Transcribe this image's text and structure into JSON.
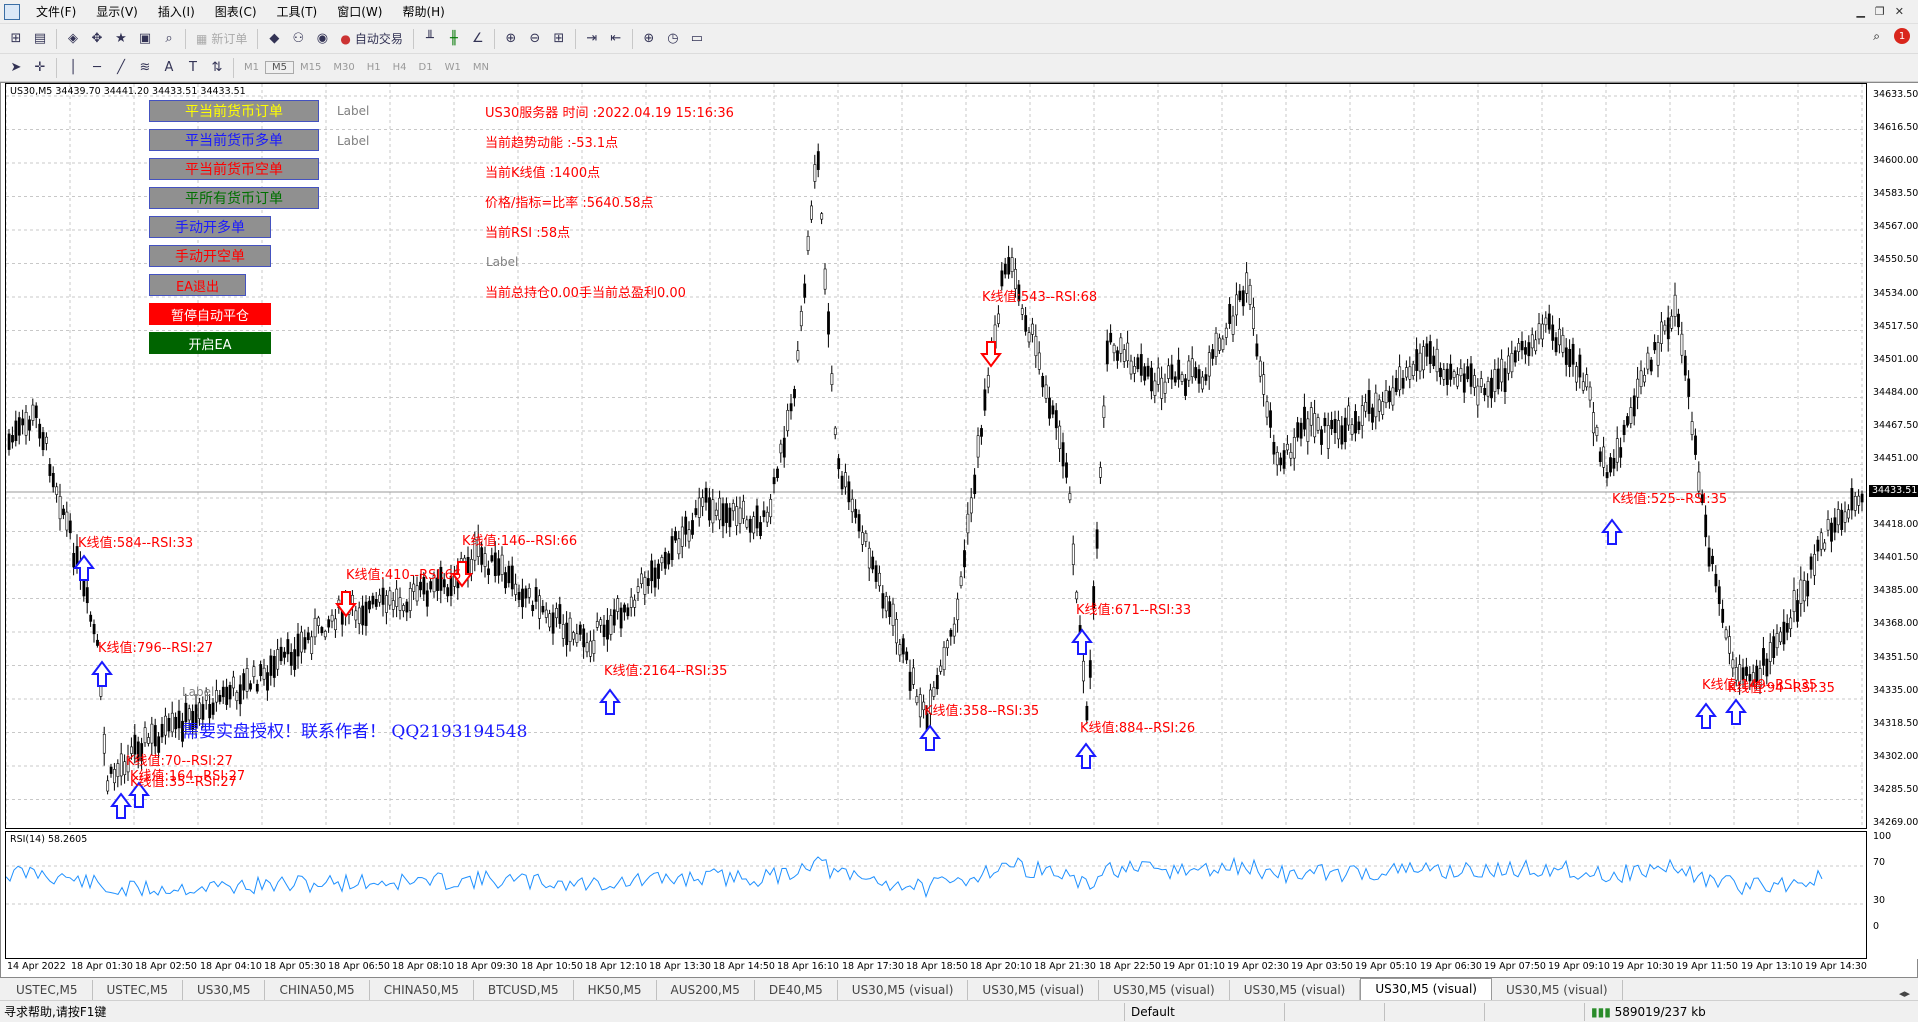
{
  "menu": [
    "文件(F)",
    "显示(V)",
    "插入(I)",
    "图表(C)",
    "工具(T)",
    "窗口(W)",
    "帮助(H)"
  ],
  "toolbar": {
    "new_order": "新订单",
    "auto_trade": "自动交易"
  },
  "timeframes": [
    "M1",
    "M5",
    "M15",
    "M30",
    "H1",
    "H4",
    "D1",
    "W1",
    "MN"
  ],
  "notification_count": "1",
  "chart": {
    "symbol_header": "US30,M5  34439.70 34441.20 34433.51 34433.51",
    "rsi_header": "RSI(14) 58.2605",
    "price_label": "34433.51",
    "y_ticks": [
      "34633.50",
      "34616.50",
      "34600.00",
      "34583.50",
      "34567.00",
      "34550.50",
      "34534.00",
      "34517.50",
      "34501.00",
      "34484.00",
      "34467.50",
      "34451.00",
      "34418.00",
      "34401.50",
      "34385.00",
      "34368.00",
      "34351.50",
      "34335.00",
      "34318.50",
      "34302.00",
      "34285.50",
      "34269.00"
    ],
    "rsi_ticks": [
      "100",
      "70",
      "30",
      "0"
    ],
    "x_ticks": [
      "14 Apr 2022",
      "18 Apr 01:30",
      "18 Apr 02:50",
      "18 Apr 04:10",
      "18 Apr 05:30",
      "18 Apr 06:50",
      "18 Apr 08:10",
      "18 Apr 09:30",
      "18 Apr 10:50",
      "18 Apr 12:10",
      "18 Apr 13:30",
      "18 Apr 14:50",
      "18 Apr 16:10",
      "18 Apr 17:30",
      "18 Apr 18:50",
      "18 Apr 20:10",
      "18 Apr 21:30",
      "18 Apr 22:50",
      "19 Apr 01:10",
      "19 Apr 02:30",
      "19 Apr 03:50",
      "19 Apr 05:10",
      "19 Apr 06:30",
      "19 Apr 07:50",
      "19 Apr 09:10",
      "19 Apr 10:30",
      "19 Apr 11:50",
      "19 Apr 13:10",
      "19 Apr 14:30"
    ]
  },
  "ea_panel": {
    "buttons": [
      "平当前货币订单",
      "平当前货币多单",
      "平当前货币空单",
      "平所有货币订单",
      "手动开多单",
      "手动开空单",
      "EA退出",
      "暂停自动平仓",
      "开启EA"
    ],
    "label_a": "Label",
    "label_b": "Label",
    "label_c": "Label",
    "label_d": "Label"
  },
  "info_lines": [
    "US30服务器  时间 :2022.04.19 15:16:36",
    "当前趋势动能 :-53.1点",
    "当前K线值 :1400点",
    "价格/指标=比率 :5640.58点",
    "当前RSI :58点",
    "当前总持仓0.00手当前总盈利0.00"
  ],
  "contact": "需要实盘授权！联系作者！ QQ2193194548",
  "annotations": [
    "K线值:584--RSI:33",
    "K线值:796--RSI:27",
    "K线值:410--RSI:66",
    "K线值:146--RSI:66",
    "K线值:2164--RSI:35",
    "K线值:358--RSI:35",
    "K线值:543--RSI:68",
    "K线值:671--RSI:33",
    "K线值:884--RSI:26",
    "K线值:525--RSI:35",
    "K线值:70--RSI:27",
    "K线值:164--RSI:27",
    "K线值:35--RSI:27",
    "K线值:149--RSI:35",
    "K线值:94--RSI:35"
  ],
  "tabs": [
    "USTEC,M5",
    "USTEC,M5",
    "US30,M5",
    "CHINA50,M5",
    "CHINA50,M5",
    "BTCUSD,M5",
    "HK50,M5",
    "AUS200,M5",
    "DE40,M5",
    "US30,M5 (visual)",
    "US30,M5 (visual)",
    "US30,M5 (visual)",
    "US30,M5 (visual)",
    "US30,M5 (visual)",
    "US30,M5 (visual)"
  ],
  "status": {
    "help": "寻求帮助,请按F1键",
    "profile": "Default",
    "traffic": "589019/237 kb"
  }
}
